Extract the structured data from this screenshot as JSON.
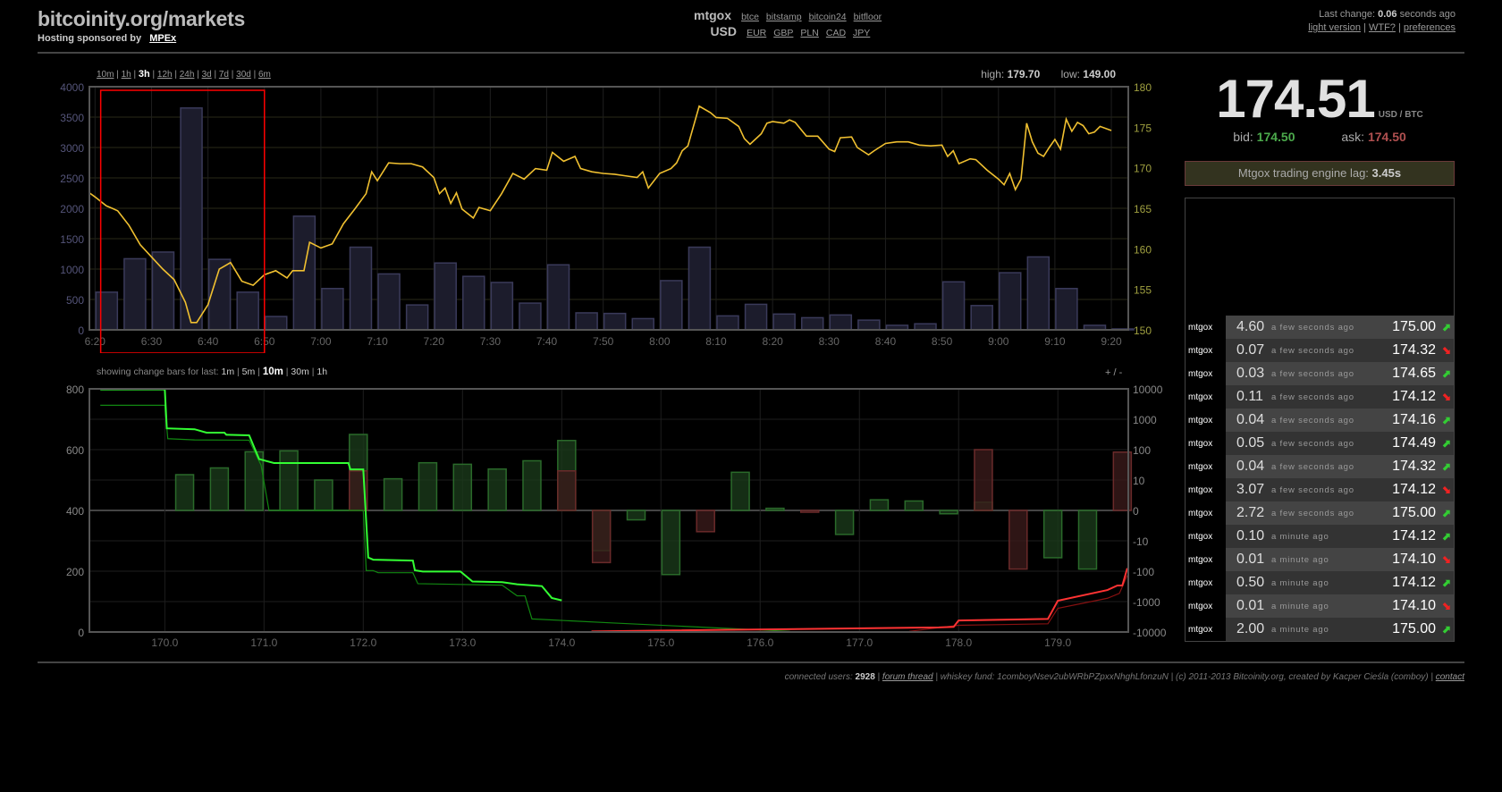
{
  "header": {
    "title": "bitcoinity.org/markets",
    "sponsor_label": "Hosting sponsored by",
    "sponsor_link": "MPEx",
    "exchange_selected": "mtgox",
    "exchanges": [
      "btce",
      "bitstamp",
      "bitcoin24",
      "bitfloor"
    ],
    "currency_selected": "USD",
    "currencies": [
      "EUR",
      "GBP",
      "PLN",
      "CAD",
      "JPY"
    ],
    "last_change_label": "Last change:",
    "last_change_value": "0.06",
    "last_change_suffix": "seconds ago",
    "links": [
      "light version",
      "WTF?",
      "preferences"
    ]
  },
  "timeframes": {
    "items": [
      "10m",
      "1h",
      "3h",
      "12h",
      "24h",
      "3d",
      "7d",
      "30d",
      "6m"
    ],
    "selected": "3h"
  },
  "hilo": {
    "high_label": "high:",
    "high": "179.70",
    "low_label": "low:",
    "low": "149.00"
  },
  "ticker": {
    "price": "174.51",
    "unit": "USD / BTC",
    "bid_label": "bid:",
    "bid": "174.50",
    "ask_label": "ask:",
    "ask": "174.50",
    "lag_label": "Mtgox trading engine lag:",
    "lag_value": "3.45s"
  },
  "trades": [
    {
      "exchange": "mtgox",
      "amount": "4.60",
      "age": "a few seconds ago",
      "price": "175.00",
      "dir": "up"
    },
    {
      "exchange": "mtgox",
      "amount": "0.07",
      "age": "a few seconds ago",
      "price": "174.32",
      "dir": "down"
    },
    {
      "exchange": "mtgox",
      "amount": "0.03",
      "age": "a few seconds ago",
      "price": "174.65",
      "dir": "up"
    },
    {
      "exchange": "mtgox",
      "amount": "0.11",
      "age": "a few seconds ago",
      "price": "174.12",
      "dir": "down"
    },
    {
      "exchange": "mtgox",
      "amount": "0.04",
      "age": "a few seconds ago",
      "price": "174.16",
      "dir": "up"
    },
    {
      "exchange": "mtgox",
      "amount": "0.05",
      "age": "a few seconds ago",
      "price": "174.49",
      "dir": "up"
    },
    {
      "exchange": "mtgox",
      "amount": "0.04",
      "age": "a few seconds ago",
      "price": "174.32",
      "dir": "up"
    },
    {
      "exchange": "mtgox",
      "amount": "3.07",
      "age": "a few seconds ago",
      "price": "174.12",
      "dir": "down"
    },
    {
      "exchange": "mtgox",
      "amount": "2.72",
      "age": "a few seconds ago",
      "price": "175.00",
      "dir": "up"
    },
    {
      "exchange": "mtgox",
      "amount": "0.10",
      "age": "a minute ago",
      "price": "174.12",
      "dir": "up"
    },
    {
      "exchange": "mtgox",
      "amount": "0.01",
      "age": "a minute ago",
      "price": "174.10",
      "dir": "down"
    },
    {
      "exchange": "mtgox",
      "amount": "0.50",
      "age": "a minute ago",
      "price": "174.12",
      "dir": "up"
    },
    {
      "exchange": "mtgox",
      "amount": "0.01",
      "age": "a minute ago",
      "price": "174.10",
      "dir": "down"
    },
    {
      "exchange": "mtgox",
      "amount": "2.00",
      "age": "a minute ago",
      "price": "175.00",
      "dir": "up"
    }
  ],
  "change_bars": {
    "label": "showing change bars for last:",
    "items": [
      "1m",
      "5m",
      "10m",
      "30m",
      "1h"
    ],
    "selected": "10m",
    "zoom_label": "+ / -"
  },
  "footer": {
    "users_label": "connected users:",
    "users": "2928",
    "forum": "forum thread",
    "rest": "| whiskey fund: 1comboyNsev2ubWRbPZpxxNhghLfonzuN | (c) 2011-2013 Bitcoinity.org, created by Kacper Cieśla (comboy) |",
    "contact": "contact"
  },
  "colors": {
    "price_line": "#f0c030",
    "volume_bar": "#1c1c2c",
    "volume_border": "#3a3a5a",
    "bid": "#33ff33",
    "bid_old": "#118811",
    "ask": "#ff3333",
    "ask_old": "#881111",
    "selection": "#ff0000"
  },
  "chart_data": [
    {
      "type": "bar+line",
      "xlim": [
        "6:19",
        "9:23"
      ],
      "xticks": [
        "6:20",
        "6:30",
        "6:40",
        "6:50",
        "7:00",
        "7:10",
        "7:20",
        "7:30",
        "7:40",
        "7:50",
        "8:00",
        "8:10",
        "8:20",
        "8:30",
        "8:40",
        "8:50",
        "9:00",
        "9:10",
        "9:20"
      ],
      "y_left": {
        "range": [
          0,
          4000
        ],
        "ticks": [
          0,
          500,
          1000,
          1500,
          2000,
          2500,
          3000,
          3500,
          4000
        ]
      },
      "y_right": {
        "range": [
          150,
          180
        ],
        "ticks": [
          150,
          155,
          160,
          165,
          170,
          175,
          180
        ]
      },
      "selection": {
        "from": "6:21",
        "to": "6:50"
      },
      "volume": {
        "bin_minutes": 5,
        "x": [
          "6:20",
          "6:25",
          "6:30",
          "6:35",
          "6:40",
          "6:45",
          "6:50",
          "6:55",
          "7:00",
          "7:05",
          "7:10",
          "7:15",
          "7:20",
          "7:25",
          "7:30",
          "7:35",
          "7:40",
          "7:45",
          "7:50",
          "7:55",
          "8:00",
          "8:05",
          "8:10",
          "8:15",
          "8:20",
          "8:25",
          "8:30",
          "8:35",
          "8:40",
          "8:45",
          "8:50",
          "8:55",
          "9:00",
          "9:05",
          "9:10",
          "9:15",
          "9:20"
        ],
        "values": [
          620,
          1170,
          1280,
          3650,
          1160,
          620,
          220,
          1870,
          680,
          1360,
          920,
          410,
          1100,
          880,
          780,
          440,
          1070,
          280,
          270,
          185,
          810,
          1360,
          230,
          420,
          260,
          200,
          245,
          160,
          75,
          100,
          790,
          400,
          940,
          1200,
          680,
          75,
          15
        ]
      },
      "price": {
        "x": [
          "6:19",
          "6:20",
          "6:22",
          "6:24",
          "6:26",
          "6:28",
          "6:30",
          "6:32",
          "6:34",
          "6:36",
          "6:37",
          "6:38",
          "6:40",
          "6:42",
          "6:44",
          "6:46",
          "6:48",
          "6:50",
          "6:52",
          "6:54",
          "6:55",
          "6:57",
          "6:58",
          "7:00",
          "7:02",
          "7:04",
          "7:06",
          "7:08",
          "7:09",
          "7:10",
          "7:12",
          "7:14",
          "7:16",
          "7:18",
          "7:20",
          "7:21",
          "7:22",
          "7:23",
          "7:24",
          "7:25",
          "7:27",
          "7:28",
          "7:30",
          "7:32",
          "7:34",
          "7:36",
          "7:38",
          "7:40",
          "7:41",
          "7:43",
          "7:45",
          "7:46",
          "7:48",
          "7:50",
          "7:52",
          "7:54",
          "7:56",
          "7:57",
          "7:58",
          "8:00",
          "8:02",
          "8:03",
          "8:04",
          "8:05",
          "8:07",
          "8:09",
          "8:10",
          "8:12",
          "8:14",
          "8:15",
          "8:16",
          "8:18",
          "8:19",
          "8:20",
          "8:22",
          "8:23",
          "8:24",
          "8:26",
          "8:28",
          "8:30",
          "8:31",
          "8:32",
          "8:34",
          "8:35",
          "8:37",
          "8:38",
          "8:40",
          "8:42",
          "8:44",
          "8:46",
          "8:48",
          "8:50",
          "8:51",
          "8:52",
          "8:53",
          "8:55",
          "8:56",
          "8:58",
          "9:00",
          "9:01",
          "9:02",
          "9:03",
          "9:04",
          "9:05",
          "9:06",
          "9:07",
          "9:08",
          "9:09",
          "9:10",
          "9:11",
          "9:12",
          "9:13",
          "9:14",
          "9:15",
          "9:16",
          "9:17",
          "9:18",
          "9:20"
        ],
        "values": [
          166.9,
          166.4,
          165.3,
          164.7,
          162.9,
          160.5,
          159.0,
          157.5,
          156.2,
          153.4,
          150.9,
          150.9,
          153.1,
          157.5,
          158.3,
          156.0,
          155.5,
          156.8,
          157.3,
          156.4,
          157.3,
          157.3,
          160.8,
          160.1,
          160.6,
          163.1,
          164.9,
          166.8,
          169.5,
          168.4,
          170.6,
          170.5,
          170.5,
          170.1,
          168.8,
          166.8,
          167.5,
          165.6,
          166.9,
          164.9,
          163.8,
          165.1,
          164.7,
          166.8,
          169.3,
          168.6,
          169.9,
          169.7,
          171.9,
          170.8,
          171.4,
          169.9,
          169.5,
          169.3,
          169.2,
          169.0,
          168.8,
          169.5,
          167.5,
          169.3,
          169.9,
          170.6,
          172.1,
          172.7,
          177.6,
          176.8,
          176.2,
          176.1,
          175.1,
          173.6,
          172.9,
          174.2,
          175.5,
          175.7,
          175.5,
          175.9,
          175.6,
          173.9,
          173.9,
          172.3,
          172.0,
          173.7,
          173.8,
          172.5,
          171.6,
          172.1,
          173.0,
          173.2,
          173.2,
          172.8,
          172.7,
          172.8,
          171.4,
          172.1,
          170.5,
          171.1,
          171.0,
          169.7,
          168.6,
          167.9,
          169.3,
          167.3,
          168.6,
          175.5,
          173.2,
          171.8,
          171.4,
          172.5,
          173.5,
          172.3,
          176.0,
          174.5,
          175.6,
          175.2,
          174.2,
          174.4,
          175.1,
          174.6
        ]
      }
    },
    {
      "type": "depth+bar",
      "xlim": [
        169.24,
        179.71
      ],
      "xticks": [
        "170.0",
        "171.0",
        "172.0",
        "173.0",
        "174.0",
        "175.0",
        "176.0",
        "177.0",
        "178.0",
        "179.0"
      ],
      "y_left": {
        "range": [
          0,
          800
        ],
        "ticks": [
          0,
          200,
          400,
          600,
          800
        ]
      },
      "y_right": {
        "scale": "symlog",
        "ticks": [
          "10000",
          "1000",
          "100",
          "10",
          "0",
          "-10",
          "-100",
          "-1000",
          "-10000"
        ]
      },
      "bids": {
        "x": [
          169.35,
          170.0,
          170.02,
          170.3,
          170.42,
          170.6,
          170.62,
          170.85,
          170.95,
          171.1,
          171.85,
          171.87,
          172.0,
          172.05,
          172.1,
          172.5,
          172.52,
          172.6,
          172.98,
          173.1,
          173.4,
          173.55,
          173.8,
          173.9,
          174.0
        ],
        "y": [
          798,
          798,
          670,
          667,
          656,
          656,
          649,
          647,
          569,
          556,
          556,
          535,
          535,
          245,
          238,
          235,
          203,
          199,
          199,
          166,
          164,
          157,
          151,
          112,
          104
        ]
      },
      "bids_old": {
        "x": [
          169.35,
          170.0,
          170.03,
          170.3,
          170.85,
          170.97,
          171.05,
          172.0,
          172.03,
          172.1,
          172.15,
          172.5,
          172.55,
          173.4,
          173.55,
          173.63,
          173.7,
          174.5,
          176.3
        ],
        "y": [
          746,
          746,
          636,
          632,
          631,
          549,
          400,
          400,
          202,
          202,
          195,
          195,
          159,
          154,
          119,
          119,
          43,
          30,
          2
        ]
      },
      "asks": {
        "x": [
          174.3,
          177.8,
          177.95,
          178.0,
          178.9,
          179.0,
          179.5,
          179.6,
          179.65,
          179.7
        ],
        "y": [
          2,
          15,
          17,
          38,
          43,
          103,
          138,
          153,
          153,
          210
        ]
      },
      "asks_old": {
        "x": [
          177.5,
          178.0,
          178.9,
          179.0,
          179.5,
          179.62,
          179.7
        ],
        "y": [
          2,
          22,
          27,
          78,
          111,
          127,
          186
        ]
      },
      "change_bars": {
        "x": [
          170.2,
          170.55,
          170.9,
          171.25,
          171.6,
          171.95,
          172.3,
          172.65,
          173.0,
          173.35,
          173.7,
          174.05,
          174.4,
          174.75,
          175.1,
          175.45,
          175.8,
          176.15,
          176.5,
          176.85,
          177.2,
          177.55,
          177.9,
          178.25,
          178.6,
          178.95,
          179.3,
          179.65
        ],
        "bid": [
          15,
          25,
          85,
          91,
          10,
          316,
          11,
          37,
          33,
          23,
          43,
          200,
          -21,
          -3.1,
          -129,
          0,
          18,
          0.7,
          0,
          -7.9,
          3.5,
          3.1,
          -1.1,
          2.7,
          0,
          -36,
          -85,
          0
        ],
        "ask": [
          0,
          0,
          0,
          0,
          0,
          20,
          0,
          0,
          0,
          0,
          0,
          20,
          -52,
          0,
          0,
          -7,
          0,
          0,
          -0.6,
          0,
          0,
          0,
          0,
          100,
          -85,
          0,
          0,
          83
        ]
      }
    }
  ]
}
